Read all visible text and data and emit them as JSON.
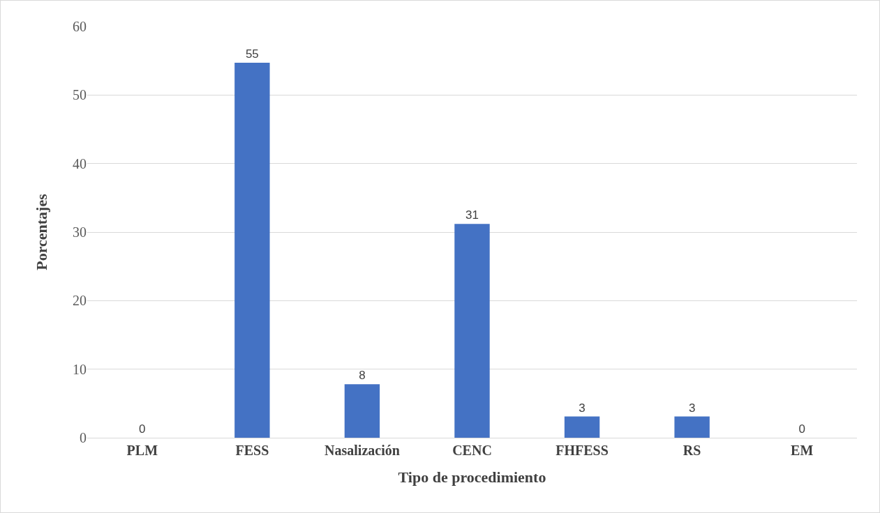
{
  "chart_data": {
    "type": "bar",
    "xlabel": "Tipo de procedimiento",
    "ylabel": "Porcentajes",
    "categories": [
      "PLM",
      "FESS",
      "Nasalización",
      "CENC",
      "FHFESS",
      "RS",
      "EM"
    ],
    "values": [
      0,
      54.7,
      7.8,
      31.2,
      3.1,
      3.1,
      0
    ],
    "value_labels": [
      "0",
      "55",
      "8",
      "31",
      "3",
      "3",
      "0"
    ],
    "color": "#4472c4",
    "ylim": [
      0,
      60
    ],
    "yticks": [
      0,
      10,
      20,
      30,
      40,
      50,
      60
    ],
    "grid": "y",
    "legend": false
  }
}
